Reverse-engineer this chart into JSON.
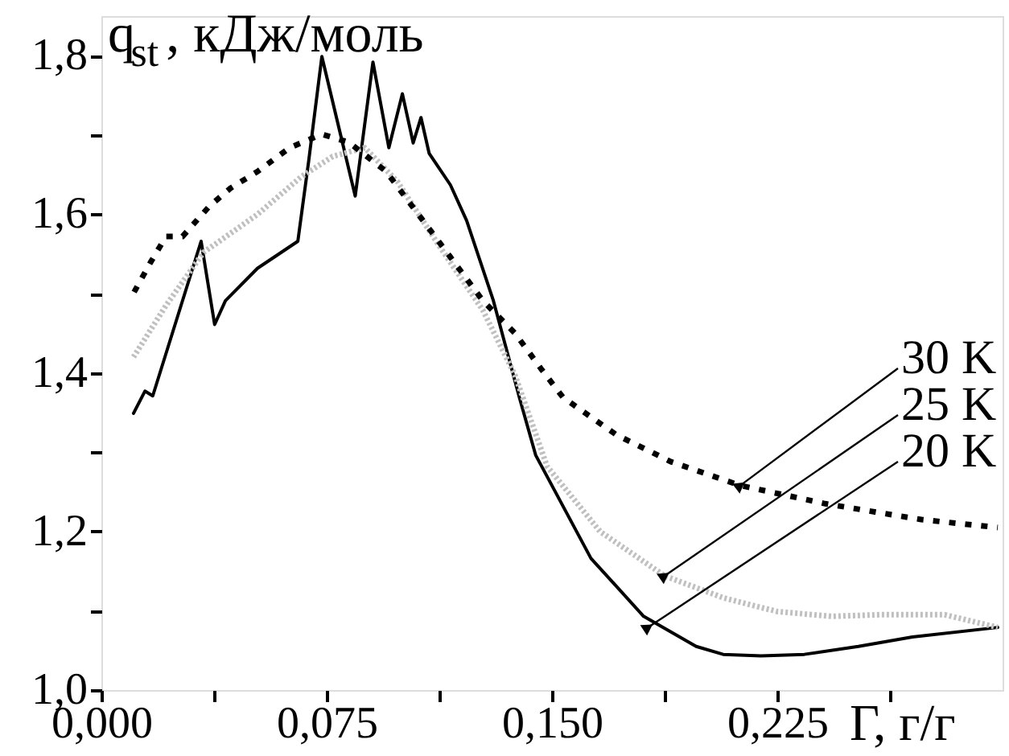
{
  "chart_data": {
    "type": "line",
    "xlabel": "Γ, г/г",
    "ylabel": "q$_{st}$, кДж/моль",
    "xlim": [
      0,
      0.3
    ],
    "ylim": [
      1.0,
      1.85
    ],
    "xticks": [
      {
        "value": 0,
        "label": "0,000"
      },
      {
        "value": 0.0375,
        "label": null
      },
      {
        "value": 0.075,
        "label": "0,075"
      },
      {
        "value": 0.1125,
        "label": null
      },
      {
        "value": 0.15,
        "label": "0,150"
      },
      {
        "value": 0.1875,
        "label": null
      },
      {
        "value": 0.225,
        "label": "0,225"
      },
      {
        "value": 0.2625,
        "label": null
      }
    ],
    "yticks": [
      {
        "value": 1.0,
        "label": "1,0"
      },
      {
        "value": 1.1,
        "label": null
      },
      {
        "value": 1.2,
        "label": "1,2"
      },
      {
        "value": 1.3,
        "label": null
      },
      {
        "value": 1.4,
        "label": "1,4"
      },
      {
        "value": 1.5,
        "label": null
      },
      {
        "value": 1.6,
        "label": "1,6"
      },
      {
        "value": 1.7,
        "label": null
      },
      {
        "value": 1.8,
        "label": "1,8"
      }
    ],
    "grid": false,
    "series": [
      {
        "color": "#000000",
        "line_style": "solid",
        "x": [
          0.0107,
          0.0145,
          0.0171,
          0.0332,
          0.0377,
          0.0413,
          0.052,
          0.0654,
          0.069,
          0.0734,
          0.0845,
          0.0904,
          0.0957,
          0.1002,
          0.1038,
          0.1064,
          0.1091,
          0.1162,
          0.1216,
          0.1305,
          0.1393,
          0.1446,
          0.163,
          0.1805,
          0.198,
          0.207,
          0.2196,
          0.234,
          0.252,
          0.27,
          0.2984
        ],
        "values": [
          1.349,
          1.377,
          1.371,
          1.566,
          1.461,
          1.491,
          1.532,
          1.566,
          1.667,
          1.799,
          1.623,
          1.792,
          1.684,
          1.752,
          1.69,
          1.722,
          1.677,
          1.637,
          1.592,
          1.491,
          1.367,
          1.296,
          1.166,
          1.093,
          1.055,
          1.045,
          1.043,
          1.045,
          1.055,
          1.067,
          1.079
        ]
      },
      {
        "color": "#c0c0c0",
        "line_style": "dotted",
        "x": [
          0.0107,
          0.0215,
          0.034,
          0.052,
          0.0664,
          0.077,
          0.0877,
          0.0986,
          0.1125,
          0.127,
          0.1377,
          0.1484,
          0.166,
          0.1875,
          0.2073,
          0.225,
          0.243,
          0.259,
          0.2807,
          0.2984
        ],
        "values": [
          1.42,
          1.485,
          1.552,
          1.6,
          1.647,
          1.673,
          1.684,
          1.641,
          1.56,
          1.479,
          1.397,
          1.282,
          1.2,
          1.144,
          1.116,
          1.099,
          1.093,
          1.095,
          1.095,
          1.079
        ]
      },
      {
        "color": "#000000",
        "line_style": "dashed",
        "x": [
          0.0109,
          0.0163,
          0.0215,
          0.027,
          0.0359,
          0.043,
          0.052,
          0.0627,
          0.0734,
          0.0823,
          0.0948,
          0.1055,
          0.1162,
          0.127,
          0.1377,
          0.1466,
          0.1537,
          0.1714,
          0.1896,
          0.2127,
          0.241,
          0.273,
          0.2984
        ],
        "values": [
          1.502,
          1.539,
          1.572,
          1.572,
          1.61,
          1.633,
          1.654,
          1.684,
          1.701,
          1.691,
          1.654,
          1.6,
          1.546,
          1.491,
          1.45,
          1.404,
          1.369,
          1.322,
          1.288,
          1.258,
          1.235,
          1.215,
          1.205
        ]
      }
    ],
    "annotations": [
      {
        "text": "30 K",
        "x": 0.2127,
        "y": 1.258
      },
      {
        "text": "25 K",
        "x": 0.1875,
        "y": 1.144
      },
      {
        "text": "20 K",
        "x": 0.182,
        "y": 1.079
      }
    ]
  }
}
